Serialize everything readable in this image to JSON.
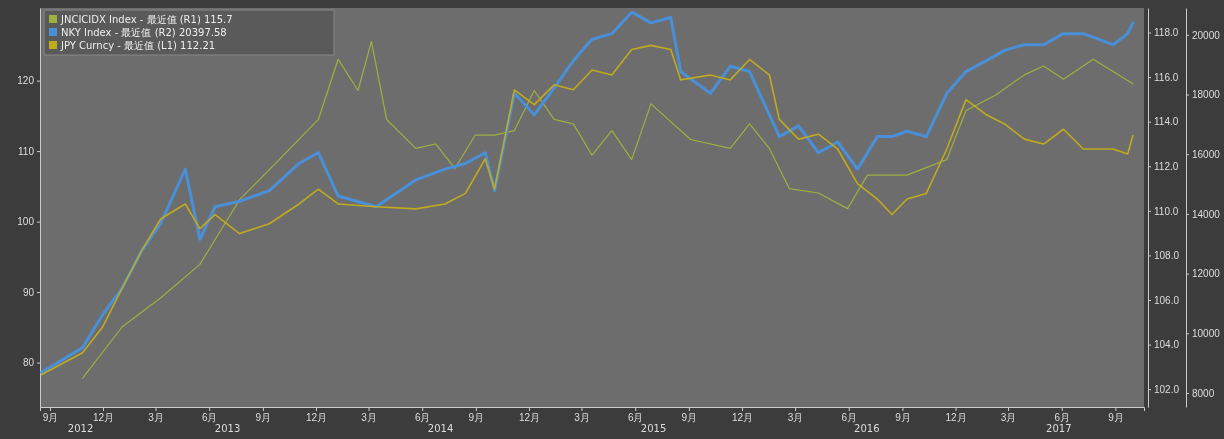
{
  "chart_data": {
    "type": "line",
    "legend": "top left",
    "xlim": [
      "2012-08-15",
      "2017-10-20"
    ],
    "xticks": [
      {
        "value": "2012-09-01",
        "label": "9月"
      },
      {
        "value": "2012-12-01",
        "label": "12月"
      },
      {
        "value": "2013-03-01",
        "label": "3月"
      },
      {
        "value": "2013-06-01",
        "label": "6月"
      },
      {
        "value": "2013-09-01",
        "label": "9月"
      },
      {
        "value": "2013-12-01",
        "label": "12月"
      },
      {
        "value": "2014-03-01",
        "label": "3月"
      },
      {
        "value": "2014-06-01",
        "label": "6月"
      },
      {
        "value": "2014-09-01",
        "label": "9月"
      },
      {
        "value": "2014-12-01",
        "label": "12月"
      },
      {
        "value": "2015-03-01",
        "label": "3月"
      },
      {
        "value": "2015-06-01",
        "label": "6月"
      },
      {
        "value": "2015-09-01",
        "label": "9月"
      },
      {
        "value": "2015-12-01",
        "label": "12月"
      },
      {
        "value": "2016-03-01",
        "label": "3月"
      },
      {
        "value": "2016-06-01",
        "label": "6月"
      },
      {
        "value": "2016-09-01",
        "label": "9月"
      },
      {
        "value": "2016-12-01",
        "label": "12月"
      },
      {
        "value": "2017-03-01",
        "label": "3月"
      },
      {
        "value": "2017-06-01",
        "label": "6月"
      },
      {
        "value": "2017-09-01",
        "label": "9月"
      }
    ],
    "annotations": [
      "2012",
      "2013",
      "2014",
      "2015",
      "2016",
      "2017"
    ],
    "ylim": [
      73.7,
      130.3
    ],
    "yticks": [
      80,
      90,
      100,
      110,
      120
    ],
    "y2lim": [
      101.2,
      119.1
    ],
    "y2ticks": [
      {
        "value": 102,
        "label": "102.0"
      },
      {
        "value": 104,
        "label": "104.0"
      },
      {
        "value": 106,
        "label": "106.0"
      },
      {
        "value": 108,
        "label": "108.0"
      },
      {
        "value": 110,
        "label": "110.0"
      },
      {
        "value": 112,
        "label": "112.0"
      },
      {
        "value": 114,
        "label": "114.0"
      },
      {
        "value": 116,
        "label": "116.0"
      },
      {
        "value": 118,
        "label": "118.0"
      }
    ],
    "y3lim": [
      7530,
      20900
    ],
    "y3ticks": [
      8000,
      10000,
      12000,
      14000,
      16000,
      18000,
      20000
    ],
    "series": [
      {
        "name": "JNCICIDX Index - 最近值 (R1) 115.7",
        "color": "#9db040",
        "axis": "y2",
        "x": [
          "2012-10-27",
          "2013-01-03",
          "2013-03-10",
          "2013-05-16",
          "2013-07-23",
          "2013-09-29",
          "2013-12-05",
          "2014-01-08",
          "2014-02-11",
          "2014-03-06",
          "2014-04-01",
          "2014-05-21",
          "2014-06-24",
          "2014-07-27",
          "2014-08-31",
          "2014-10-03",
          "2014-11-06",
          "2014-12-10",
          "2015-01-13",
          "2015-02-15",
          "2015-03-19",
          "2015-04-22",
          "2015-05-26",
          "2015-06-28",
          "2015-09-04",
          "2015-11-11",
          "2015-12-14",
          "2016-01-17",
          "2016-02-20",
          "2016-04-10",
          "2016-05-30",
          "2016-07-03",
          "2016-09-09",
          "2016-11-16",
          "2016-12-19",
          "2017-02-08",
          "2017-03-29",
          "2017-05-01",
          "2017-06-04",
          "2017-07-25",
          "2017-10-01"
        ],
        "values": [
          102.5,
          104.8,
          106.1,
          107.6,
          110.5,
          112.3,
          114.1,
          116.8,
          115.4,
          117.6,
          114.1,
          112.8,
          113,
          111.9,
          113.4,
          113.4,
          113.6,
          115.4,
          114.1,
          113.9,
          112.5,
          113.6,
          112.3,
          114.8,
          113.2,
          112.8,
          113.9,
          112.8,
          111,
          110.8,
          110.1,
          111.6,
          111.6,
          112.3,
          114.5,
          115.2,
          116.1,
          116.5,
          115.9,
          116.8,
          115.7
        ]
      },
      {
        "name": "NKY Index - 最近值 (R2) 20397.58",
        "color": "#4a90d9",
        "axis": "y3",
        "x": [
          "2012-08-18",
          "2012-10-27",
          "2012-11-30",
          "2013-01-03",
          "2013-02-06",
          "2013-03-10",
          "2013-04-21",
          "2013-05-16",
          "2013-06-11",
          "2013-07-23",
          "2013-09-12",
          "2013-11-02",
          "2013-12-05",
          "2014-01-08",
          "2014-03-14",
          "2014-05-21",
          "2014-07-10",
          "2014-08-14",
          "2014-09-17",
          "2014-10-03",
          "2014-11-06",
          "2014-12-10",
          "2015-01-13",
          "2015-02-15",
          "2015-03-19",
          "2015-04-22",
          "2015-05-26",
          "2015-06-28",
          "2015-08-01",
          "2015-08-18",
          "2015-10-08",
          "2015-11-11",
          "2015-12-14",
          "2016-01-17",
          "2016-02-03",
          "2016-03-07",
          "2016-04-10",
          "2016-05-13",
          "2016-06-16",
          "2016-07-20",
          "2016-08-14",
          "2016-09-09",
          "2016-10-12",
          "2016-11-16",
          "2016-12-19",
          "2017-01-22",
          "2017-02-24",
          "2017-03-29",
          "2017-05-01",
          "2017-06-04",
          "2017-07-08",
          "2017-08-28",
          "2017-09-22",
          "2017-10-01"
        ],
        "values": [
          8690,
          9520,
          10610,
          11520,
          12790,
          13690,
          15500,
          13150,
          14240,
          14420,
          14780,
          15690,
          16050,
          14600,
          14240,
          15140,
          15500,
          15690,
          16050,
          14780,
          18040,
          17320,
          18220,
          19130,
          19850,
          20040,
          20760,
          20400,
          20580,
          18770,
          18040,
          18950,
          18770,
          17320,
          16590,
          16950,
          16050,
          16410,
          15500,
          16590,
          16590,
          16770,
          16590,
          18040,
          18770,
          19130,
          19490,
          19670,
          19670,
          20040,
          20040,
          19670,
          20040,
          20400
        ]
      },
      {
        "name": "JPY Curncy - 最近值 (L1) 112.21",
        "color": "#c0aa1e",
        "x": [
          "2012-08-18",
          "2012-10-27",
          "2012-11-30",
          "2013-01-03",
          "2013-02-06",
          "2013-03-10",
          "2013-04-21",
          "2013-05-16",
          "2013-06-11",
          "2013-07-23",
          "2013-09-12",
          "2013-11-02",
          "2013-12-05",
          "2014-01-08",
          "2014-03-14",
          "2014-05-21",
          "2014-07-10",
          "2014-08-14",
          "2014-09-17",
          "2014-10-03",
          "2014-11-06",
          "2014-12-10",
          "2015-01-13",
          "2015-02-15",
          "2015-03-19",
          "2015-04-22",
          "2015-05-26",
          "2015-06-28",
          "2015-08-01",
          "2015-08-18",
          "2015-10-08",
          "2015-11-11",
          "2015-12-14",
          "2016-01-17",
          "2016-02-03",
          "2016-03-07",
          "2016-04-10",
          "2016-05-13",
          "2016-06-16",
          "2016-07-20",
          "2016-08-14",
          "2016-09-09",
          "2016-10-12",
          "2016-11-16",
          "2016-12-19",
          "2017-01-22",
          "2017-02-24",
          "2017-03-29",
          "2017-05-01",
          "2017-06-04",
          "2017-07-08",
          "2017-08-28",
          "2017-09-22",
          "2017-10-01"
        ],
        "values": [
          78.3,
          81.4,
          85,
          90.6,
          96,
          100.4,
          102.5,
          99,
          101,
          98.3,
          99.7,
          102.5,
          104.6,
          102.5,
          102.1,
          101.8,
          102.5,
          104,
          108.9,
          104.6,
          118.7,
          116.6,
          119.4,
          118.7,
          121.5,
          120.8,
          124.4,
          125,
          124.4,
          120.1,
          120.8,
          120.1,
          123,
          120.8,
          114.5,
          111.7,
          112.4,
          110.3,
          105.4,
          103.2,
          101,
          103.2,
          104,
          110.3,
          117.3,
          115.2,
          113.8,
          111.7,
          111,
          113.1,
          110.3,
          110.3,
          109.6,
          112.2
        ]
      }
    ]
  }
}
